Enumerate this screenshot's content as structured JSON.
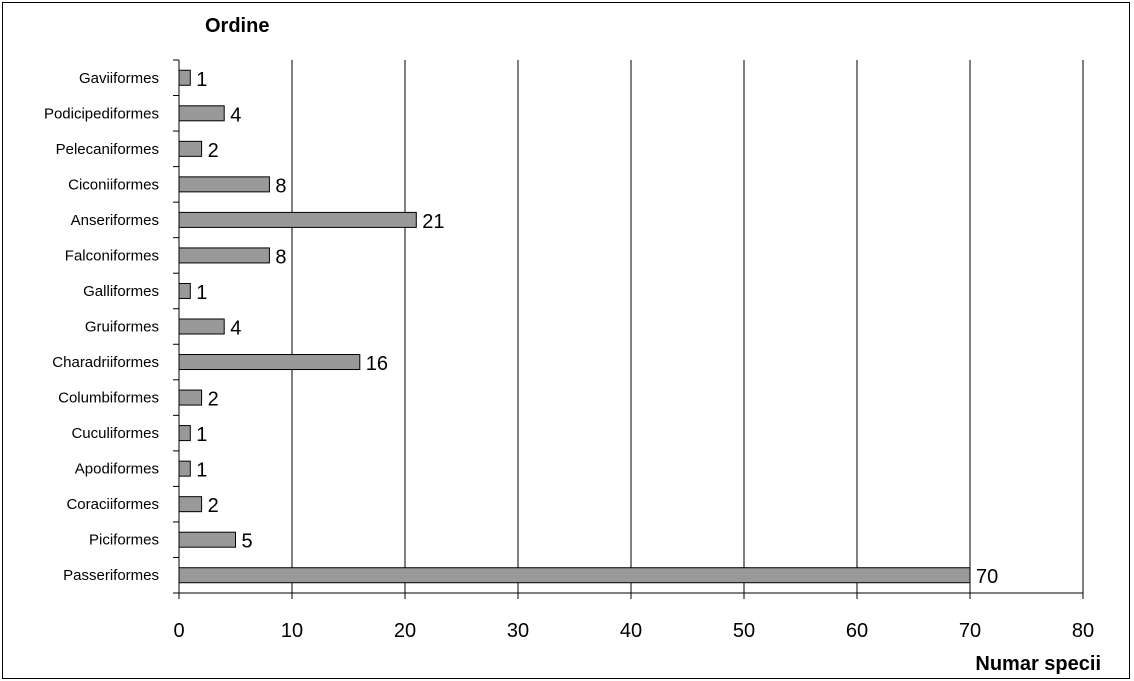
{
  "chart_data": {
    "type": "bar",
    "orientation": "horizontal",
    "categories": [
      "Gaviiformes",
      "Podicipediformes",
      "Pelecaniformes",
      "Ciconiiformes",
      "Anseriformes",
      "Falconiformes",
      "Galliformes",
      "Gruiformes",
      "Charadriiformes",
      "Columbiformes",
      "Cuculiformes",
      "Apodiformes",
      "Coraciiformes",
      "Piciformes",
      "Passeriformes"
    ],
    "values": [
      1,
      4,
      2,
      8,
      21,
      8,
      1,
      4,
      16,
      2,
      1,
      1,
      2,
      5,
      70
    ],
    "ylabel": "Ordine",
    "xlabel": "Numar specii",
    "xlim": [
      0,
      80
    ],
    "xticks": [
      0,
      10,
      20,
      30,
      40,
      50,
      60,
      70,
      80
    ],
    "grid": "vertical",
    "legend": "none",
    "bar_color": "#999999",
    "gridline_color": "#000000"
  }
}
